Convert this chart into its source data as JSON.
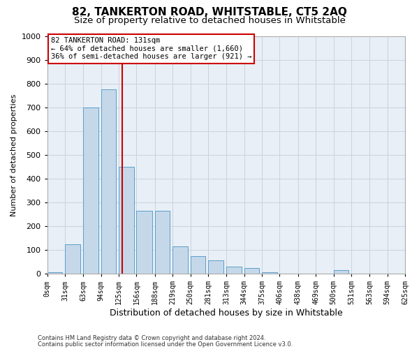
{
  "title": "82, TANKERTON ROAD, WHITSTABLE, CT5 2AQ",
  "subtitle": "Size of property relative to detached houses in Whitstable",
  "xlabel": "Distribution of detached houses by size in Whitstable",
  "ylabel": "Number of detached properties",
  "footnote1": "Contains HM Land Registry data © Crown copyright and database right 2024.",
  "footnote2": "Contains public sector information licensed under the Open Government Licence v3.0.",
  "bin_edges": [
    0,
    31,
    63,
    94,
    125,
    156,
    188,
    219,
    250,
    281,
    313,
    344,
    375,
    406,
    438,
    469,
    500,
    531,
    563,
    594,
    625
  ],
  "bar_heights": [
    5,
    125,
    700,
    775,
    450,
    265,
    265,
    115,
    75,
    55,
    30,
    25,
    5,
    0,
    0,
    0,
    15,
    0,
    0,
    0
  ],
  "bar_color": "#c5d8ea",
  "bar_edge_color": "#5b9ec9",
  "property_size": 131,
  "vline_color": "#cc0000",
  "ylim": [
    0,
    1000
  ],
  "yticks": [
    0,
    100,
    200,
    300,
    400,
    500,
    600,
    700,
    800,
    900,
    1000
  ],
  "annotation_title": "82 TANKERTON ROAD: 131sqm",
  "annotation_line1": "← 64% of detached houses are smaller (1,660)",
  "annotation_line2": "36% of semi-detached houses are larger (921) →",
  "annotation_box_color": "#ffffff",
  "annotation_box_edge_color": "#cc0000",
  "grid_color": "#c8d4df",
  "background_color": "#e8eff6",
  "title_fontsize": 11,
  "subtitle_fontsize": 9.5,
  "tick_label_fontsize": 7,
  "ylabel_fontsize": 8,
  "xlabel_fontsize": 9,
  "footnote_fontsize": 6
}
